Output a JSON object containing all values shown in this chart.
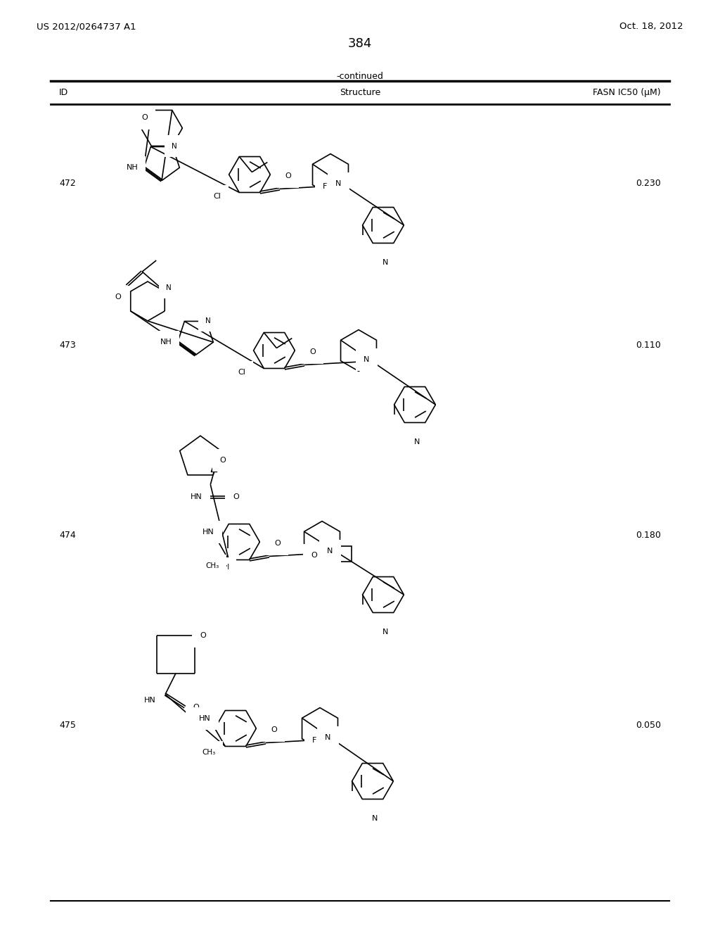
{
  "page_number": "384",
  "patent_number": "US 2012/0264737 A1",
  "patent_date": "Oct. 18, 2012",
  "continued_label": "-continued",
  "col_id": "ID",
  "col_structure": "Structure",
  "col_fasn": "FASN IC50 (μM)",
  "rows": [
    {
      "id": "472",
      "fasn": "0.230"
    },
    {
      "id": "473",
      "fasn": "0.110"
    },
    {
      "id": "474",
      "fasn": "0.180"
    },
    {
      "id": "475",
      "fasn": "0.050"
    }
  ],
  "bg_color": "#ffffff",
  "text_color": "#000000"
}
